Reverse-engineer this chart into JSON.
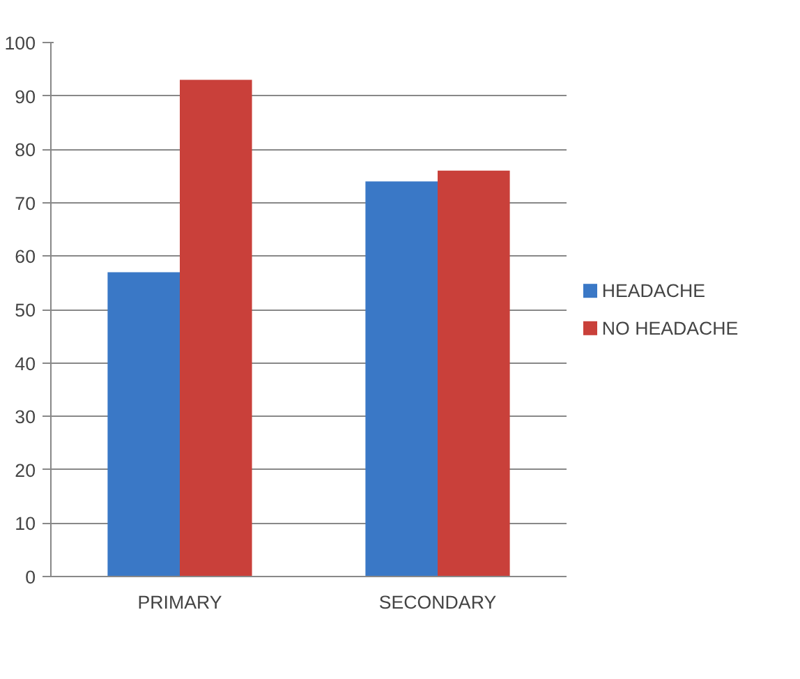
{
  "chart_data": {
    "type": "bar",
    "categories": [
      "PRIMARY",
      "SECONDARY"
    ],
    "series": [
      {
        "name": "HEADACHE",
        "color": "#3a78c6",
        "values": [
          57,
          74
        ]
      },
      {
        "name": "NO HEADACHE",
        "color": "#c9403a",
        "values": [
          93,
          76
        ]
      }
    ],
    "ylim": [
      0,
      100
    ],
    "yticks": [
      0,
      10,
      20,
      30,
      40,
      50,
      60,
      70,
      80,
      90,
      100
    ],
    "grid": "y",
    "legend": "right"
  }
}
